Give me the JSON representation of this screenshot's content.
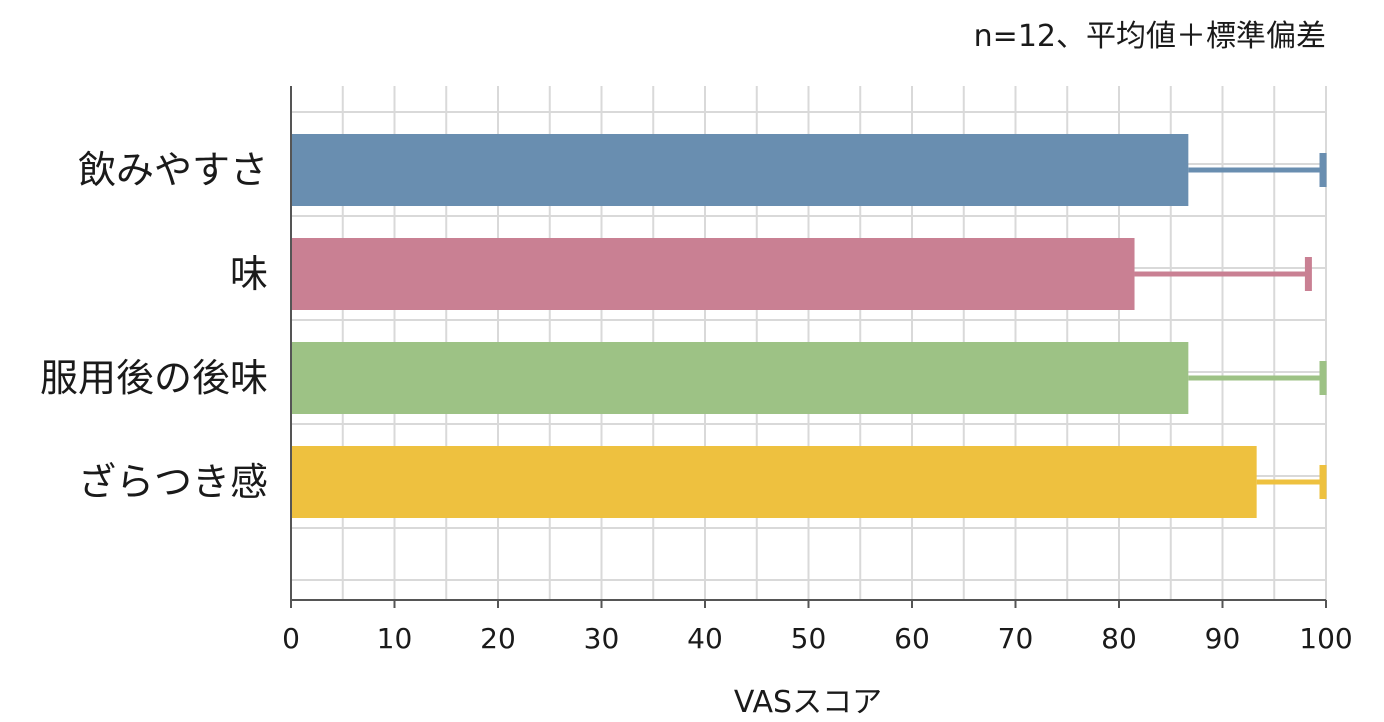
{
  "chart_data": {
    "type": "bar",
    "orientation": "horizontal",
    "note": "n=12、平均値＋標準偏差",
    "categories": [
      "飲みやすさ",
      "味",
      "服用後の後味",
      "ざらつき感"
    ],
    "values": [
      86.7,
      81.5,
      86.7,
      93.3
    ],
    "error_bars": {
      "upper": [
        100,
        98.3,
        100,
        100
      ]
    },
    "colors": [
      "#698eb0",
      "#c98093",
      "#9dc285",
      "#eec13f"
    ],
    "xlabel": "VASスコア",
    "ylabel": "",
    "xlim": [
      0,
      100
    ],
    "xticks": [
      0,
      10,
      20,
      30,
      40,
      50,
      60,
      70,
      80,
      90,
      100
    ],
    "grid": true
  }
}
